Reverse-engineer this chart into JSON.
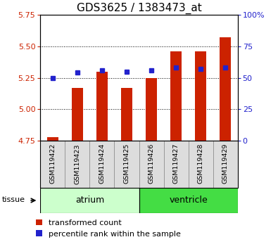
{
  "title": "GDS3625 / 1383473_at",
  "samples": [
    "GSM119422",
    "GSM119423",
    "GSM119424",
    "GSM119425",
    "GSM119426",
    "GSM119427",
    "GSM119428",
    "GSM119429"
  ],
  "red_values": [
    4.78,
    5.17,
    5.3,
    5.17,
    5.25,
    5.46,
    5.46,
    5.57
  ],
  "blue_values": [
    5.25,
    5.29,
    5.31,
    5.3,
    5.31,
    5.33,
    5.32,
    5.33
  ],
  "y_min": 4.75,
  "y_max": 5.75,
  "y_ticks_left": [
    4.75,
    5.0,
    5.25,
    5.5,
    5.75
  ],
  "y_ticks_right_vals": [
    0,
    25,
    50,
    75,
    100
  ],
  "bar_color": "#CC2200",
  "blue_color": "#2222CC",
  "bar_base": 4.75,
  "atrium_color_light": "#CCFFCC",
  "ventricle_color_dark": "#44DD44",
  "legend_red": "transformed count",
  "legend_blue": "percentile rank within the sample",
  "atrium_label": "atrium",
  "ventricle_label": "ventricle",
  "tissue_label": "tissue"
}
